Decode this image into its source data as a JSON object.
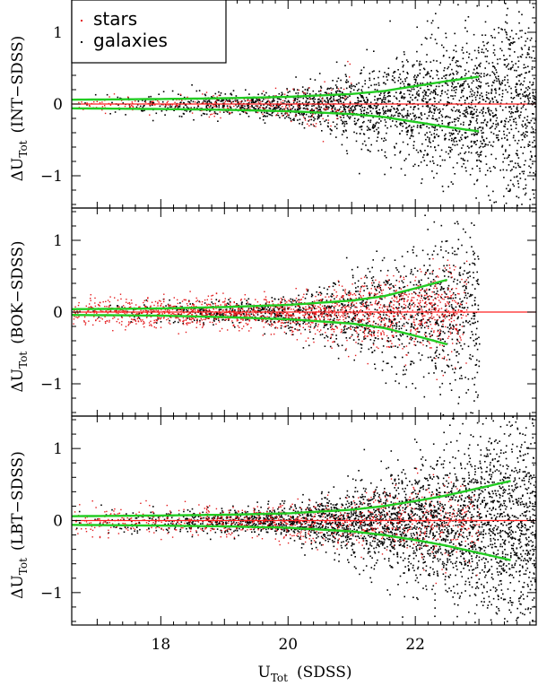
{
  "colors": {
    "stars": "#e41a1c",
    "galaxies": "#000000",
    "envelope": "#22cc22",
    "zero_line": "#ff2020"
  },
  "chart_data": {
    "type": "scatter",
    "shared_x": {
      "label": "U",
      "label_sub": "Tot",
      "label_suffix": "(SDSS)",
      "xlim": [
        16.6,
        23.9
      ],
      "ticks": [
        18,
        20,
        22
      ],
      "tick_labels": [
        "18",
        "20",
        "22"
      ]
    },
    "legend": {
      "placement": "top-left of top panel",
      "entries": [
        {
          "label": "stars",
          "color": "#e41a1c"
        },
        {
          "label": "galaxies",
          "color": "#000000"
        }
      ]
    },
    "panels": [
      {
        "ylabel_prefix": "ΔU",
        "ylabel_sub": "Tot",
        "ylabel_suffix": "(INT−SDSS)",
        "ylim": [
          -1.45,
          1.45
        ],
        "yticks": [
          -1,
          0,
          1
        ],
        "ytick_labels": [
          "−1",
          "0",
          "1"
        ],
        "zero_line": 0,
        "envelope_x": [
          16.6,
          18,
          19,
          20,
          21,
          21.5,
          22,
          22.5,
          23
        ],
        "envelope_upper": [
          0.06,
          0.07,
          0.08,
          0.1,
          0.14,
          0.18,
          0.25,
          0.32,
          0.38
        ],
        "envelope_lower": [
          -0.06,
          -0.07,
          -0.08,
          -0.1,
          -0.14,
          -0.18,
          -0.25,
          -0.32,
          -0.38
        ],
        "scatter": {
          "stars": {
            "count": 260,
            "x_range": [
              16.6,
              21.0
            ],
            "spread": 0.07
          },
          "galaxies": {
            "count": 2600,
            "x_range": [
              16.6,
              23.9
            ],
            "spread_bright": 0.08,
            "spread_faint": 0.75
          }
        }
      },
      {
        "ylabel_prefix": "ΔU",
        "ylabel_sub": "Tot",
        "ylabel_suffix": "(BOK−SDSS)",
        "ylim": [
          -1.45,
          1.45
        ],
        "yticks": [
          -1,
          0,
          1
        ],
        "ytick_labels": [
          "−1",
          "0",
          "1"
        ],
        "zero_line": 0,
        "envelope_x": [
          16.6,
          18,
          19,
          20,
          21,
          21.5,
          22,
          22.5
        ],
        "envelope_upper": [
          0.04,
          0.05,
          0.07,
          0.1,
          0.16,
          0.22,
          0.33,
          0.45
        ],
        "envelope_lower": [
          -0.04,
          -0.05,
          -0.07,
          -0.1,
          -0.16,
          -0.22,
          -0.33,
          -0.45
        ],
        "scatter": {
          "stars": {
            "count": 1700,
            "x_range": [
              16.6,
              22.8
            ],
            "spread": 0.1
          },
          "galaxies": {
            "count": 1500,
            "x_range": [
              16.6,
              23.0
            ],
            "spread_bright": 0.08,
            "spread_faint": 0.7
          }
        }
      },
      {
        "ylabel_prefix": "ΔU",
        "ylabel_sub": "Tot",
        "ylabel_suffix": "(LBT−SDSS)",
        "ylim": [
          -1.45,
          1.45
        ],
        "yticks": [
          -1,
          0,
          1
        ],
        "ytick_labels": [
          "−1",
          "0",
          "1"
        ],
        "zero_line": 0,
        "envelope_x": [
          16.6,
          18,
          19,
          20,
          21,
          21.5,
          22,
          22.5,
          23,
          23.5
        ],
        "envelope_upper": [
          0.06,
          0.07,
          0.08,
          0.1,
          0.15,
          0.2,
          0.27,
          0.35,
          0.45,
          0.55
        ],
        "envelope_lower": [
          -0.06,
          -0.07,
          -0.08,
          -0.1,
          -0.15,
          -0.2,
          -0.27,
          -0.35,
          -0.45,
          -0.55
        ],
        "scatter": {
          "stars": {
            "count": 900,
            "x_range": [
              16.6,
              23.0
            ],
            "spread": 0.1
          },
          "galaxies": {
            "count": 3400,
            "x_range": [
              16.6,
              23.9
            ],
            "spread_bright": 0.08,
            "spread_faint": 0.8
          }
        }
      }
    ]
  }
}
